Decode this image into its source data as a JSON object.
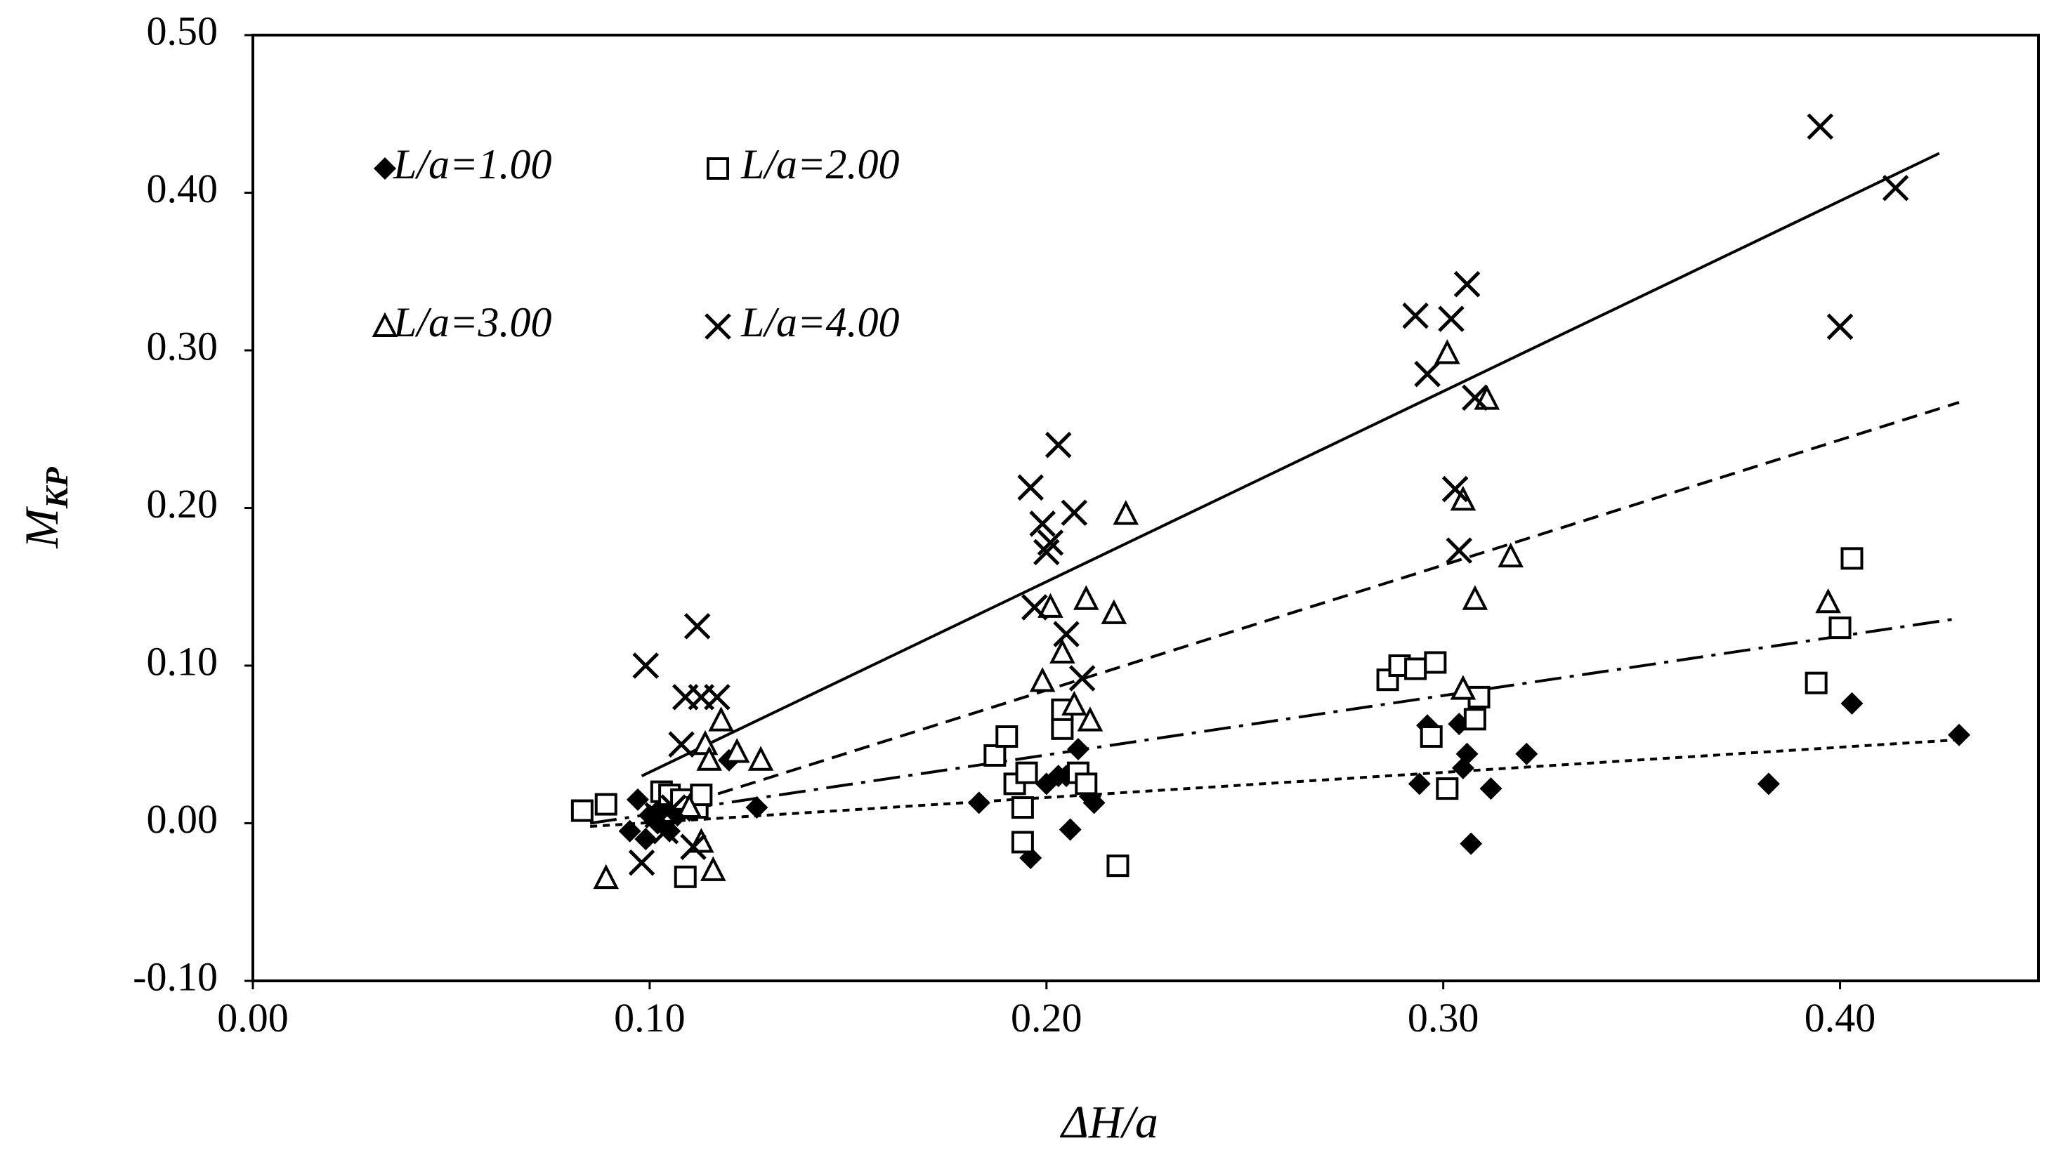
{
  "chart_data": {
    "type": "scatter",
    "title": "",
    "xlabel": "ΔH/a",
    "ylabel_main": "M",
    "ylabel_sub": "KP",
    "xlim": [
      0.0,
      0.45
    ],
    "ylim": [
      -0.1,
      0.5
    ],
    "xticks": [
      0.0,
      0.1,
      0.2,
      0.3,
      0.4
    ],
    "xtick_labels": [
      "0.00",
      "0.10",
      "0.20",
      "0.30",
      "0.40"
    ],
    "yticks": [
      -0.1,
      0.0,
      0.1,
      0.2,
      0.3,
      0.4,
      0.5
    ],
    "ytick_labels": [
      "-0.10",
      "0.00",
      "0.10",
      "0.20",
      "0.30",
      "0.40",
      "0.50"
    ],
    "grid": false,
    "legend_position": "top-left",
    "series": [
      {
        "name": "L/a=1.00",
        "marker": "diamond",
        "trendline": {
          "style": "dotted",
          "x": [
            0.085,
            0.43
          ],
          "y": [
            -0.002,
            0.053
          ]
        },
        "points": [
          [
            0.095,
            -0.005
          ],
          [
            0.097,
            0.015
          ],
          [
            0.099,
            -0.01
          ],
          [
            0.1,
            0.005
          ],
          [
            0.102,
            0.0
          ],
          [
            0.103,
            0.01
          ],
          [
            0.105,
            -0.005
          ],
          [
            0.107,
            0.005
          ],
          [
            0.11,
            0.008
          ],
          [
            0.112,
            0.01
          ],
          [
            0.12,
            0.04
          ],
          [
            0.127,
            0.01
          ],
          [
            0.183,
            0.013
          ],
          [
            0.196,
            -0.022
          ],
          [
            0.2,
            0.025
          ],
          [
            0.203,
            0.03
          ],
          [
            0.205,
            0.03
          ],
          [
            0.206,
            -0.004
          ],
          [
            0.208,
            0.047
          ],
          [
            0.21,
            0.025
          ],
          [
            0.211,
            0.017
          ],
          [
            0.212,
            0.013
          ],
          [
            0.294,
            0.025
          ],
          [
            0.296,
            0.062
          ],
          [
            0.304,
            0.063
          ],
          [
            0.305,
            0.035
          ],
          [
            0.306,
            0.044
          ],
          [
            0.307,
            -0.013
          ],
          [
            0.312,
            0.022
          ],
          [
            0.321,
            0.044
          ],
          [
            0.382,
            0.025
          ],
          [
            0.403,
            0.076
          ],
          [
            0.43,
            0.056
          ]
        ]
      },
      {
        "name": "L/a=2.00",
        "marker": "square",
        "trendline": {
          "style": "dash-dot",
          "x": [
            0.085,
            0.43
          ],
          "y": [
            0.0,
            0.13
          ]
        },
        "points": [
          [
            0.083,
            0.008
          ],
          [
            0.089,
            0.012
          ],
          [
            0.103,
            0.02
          ],
          [
            0.105,
            0.018
          ],
          [
            0.108,
            0.015
          ],
          [
            0.109,
            -0.034
          ],
          [
            0.112,
            0.01
          ],
          [
            0.113,
            0.018
          ],
          [
            0.187,
            0.043
          ],
          [
            0.19,
            0.055
          ],
          [
            0.192,
            0.025
          ],
          [
            0.194,
            0.01
          ],
          [
            0.194,
            -0.012
          ],
          [
            0.195,
            0.032
          ],
          [
            0.204,
            0.06
          ],
          [
            0.204,
            0.072
          ],
          [
            0.208,
            0.032
          ],
          [
            0.21,
            0.025
          ],
          [
            0.218,
            -0.027
          ],
          [
            0.286,
            0.091
          ],
          [
            0.289,
            0.1
          ],
          [
            0.293,
            0.098
          ],
          [
            0.297,
            0.055
          ],
          [
            0.298,
            0.102
          ],
          [
            0.301,
            0.022
          ],
          [
            0.308,
            0.066
          ],
          [
            0.309,
            0.08
          ],
          [
            0.394,
            0.089
          ],
          [
            0.4,
            0.124
          ],
          [
            0.403,
            0.168
          ]
        ]
      },
      {
        "name": "L/a=3.00",
        "marker": "triangle",
        "trendline": {
          "style": "dashed",
          "x": [
            0.1,
            0.43
          ],
          "y": [
            0.005,
            0.267
          ]
        },
        "points": [
          [
            0.089,
            -0.035
          ],
          [
            0.11,
            0.01
          ],
          [
            0.113,
            -0.012
          ],
          [
            0.114,
            0.05
          ],
          [
            0.115,
            0.04
          ],
          [
            0.116,
            -0.03
          ],
          [
            0.118,
            0.065
          ],
          [
            0.122,
            0.045
          ],
          [
            0.128,
            0.04
          ],
          [
            0.199,
            0.09
          ],
          [
            0.201,
            0.137
          ],
          [
            0.204,
            0.108
          ],
          [
            0.207,
            0.075
          ],
          [
            0.21,
            0.142
          ],
          [
            0.211,
            0.065
          ],
          [
            0.217,
            0.133
          ],
          [
            0.22,
            0.196
          ],
          [
            0.301,
            0.298
          ],
          [
            0.305,
            0.205
          ],
          [
            0.305,
            0.085
          ],
          [
            0.308,
            0.142
          ],
          [
            0.311,
            0.269
          ],
          [
            0.317,
            0.169
          ],
          [
            0.397,
            0.14
          ]
        ]
      },
      {
        "name": "L/a=4.00",
        "marker": "x",
        "trendline": {
          "style": "solid",
          "x": [
            0.098,
            0.425
          ],
          "y": [
            0.03,
            0.425
          ]
        },
        "points": [
          [
            0.098,
            -0.025
          ],
          [
            0.099,
            0.1
          ],
          [
            0.102,
            0.005
          ],
          [
            0.104,
            -0.005
          ],
          [
            0.106,
            0.01
          ],
          [
            0.108,
            0.05
          ],
          [
            0.109,
            0.08
          ],
          [
            0.111,
            -0.015
          ],
          [
            0.112,
            0.125
          ],
          [
            0.113,
            0.08
          ],
          [
            0.117,
            0.08
          ],
          [
            0.196,
            0.213
          ],
          [
            0.197,
            0.137
          ],
          [
            0.199,
            0.19
          ],
          [
            0.2,
            0.172
          ],
          [
            0.201,
            0.178
          ],
          [
            0.203,
            0.24
          ],
          [
            0.205,
            0.12
          ],
          [
            0.207,
            0.197
          ],
          [
            0.209,
            0.092
          ],
          [
            0.293,
            0.322
          ],
          [
            0.296,
            0.285
          ],
          [
            0.302,
            0.32
          ],
          [
            0.303,
            0.212
          ],
          [
            0.304,
            0.173
          ],
          [
            0.306,
            0.342
          ],
          [
            0.308,
            0.27
          ],
          [
            0.395,
            0.442
          ],
          [
            0.4,
            0.315
          ],
          [
            0.414,
            0.403
          ]
        ]
      }
    ]
  },
  "legend": {
    "items": [
      {
        "label": "L/a=1.00",
        "marker": "diamond"
      },
      {
        "label": "L/a=2.00",
        "marker": "square"
      },
      {
        "label": "L/a=3.00",
        "marker": "triangle"
      },
      {
        "label": "L/a=4.00",
        "marker": "x"
      }
    ]
  }
}
